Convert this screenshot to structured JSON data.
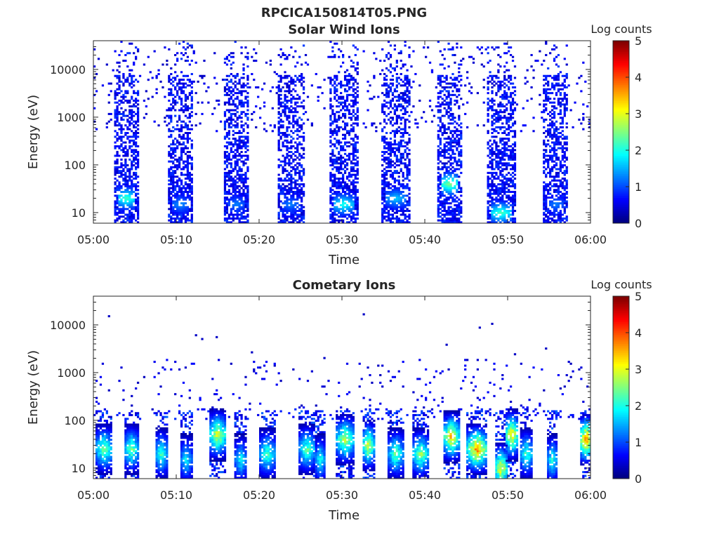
{
  "figure": {
    "title": "RPCICA150814T05.PNG"
  },
  "chart_data": [
    {
      "type": "heatmap",
      "title": "Solar Wind Ions",
      "xlabel": "Time",
      "ylabel": "Energy (eV)",
      "x_ticks": [
        "05:00",
        "05:10",
        "05:20",
        "05:30",
        "05:40",
        "05:50",
        "06:00"
      ],
      "y_ticks": [
        "10",
        "100",
        "1000",
        "10000"
      ],
      "y_scale": "log",
      "ylim_eV": [
        6,
        40000
      ],
      "colorbar": {
        "label": "Log counts",
        "min": 0,
        "max": 5,
        "ticks": [
          "0",
          "1",
          "2",
          "3",
          "4",
          "5"
        ],
        "colormap": "jet"
      },
      "bursts": [
        {
          "center_min": 4.0,
          "width_min": 3.2,
          "peak_log_counts": 2.2,
          "peak_energy_eV": 20,
          "low_energy_bright": true
        },
        {
          "center_min": 10.5,
          "width_min": 3.2,
          "peak_log_counts": 1.3,
          "peak_energy_eV": 15,
          "low_energy_bright": true
        },
        {
          "center_min": 17.3,
          "width_min": 3.0,
          "peak_log_counts": 1.2,
          "peak_energy_eV": 15,
          "low_energy_bright": true
        },
        {
          "center_min": 23.8,
          "width_min": 3.2,
          "peak_log_counts": 1.2,
          "peak_energy_eV": 15,
          "low_energy_bright": true
        },
        {
          "center_min": 30.2,
          "width_min": 3.5,
          "peak_log_counts": 2.0,
          "peak_energy_eV": 15,
          "low_energy_bright": true
        },
        {
          "center_min": 36.5,
          "width_min": 3.5,
          "peak_log_counts": 1.6,
          "peak_energy_eV": 20,
          "low_energy_bright": true
        },
        {
          "center_min": 43.0,
          "width_min": 3.2,
          "peak_log_counts": 2.5,
          "peak_energy_eV": 40,
          "low_energy_bright": true
        },
        {
          "center_min": 49.2,
          "width_min": 3.5,
          "peak_log_counts": 2.2,
          "peak_energy_eV": 10,
          "low_energy_bright": true
        },
        {
          "center_min": 55.8,
          "width_min": 3.0,
          "peak_log_counts": 1.2,
          "peak_energy_eV": 15,
          "low_energy_bright": true
        }
      ],
      "background_scatter_min_range": [
        0,
        60
      ],
      "background_scatter_energy_range_eV": [
        500,
        30000
      ]
    },
    {
      "type": "heatmap",
      "title": "Cometary Ions",
      "xlabel": "Time",
      "ylabel": "Energy (eV)",
      "x_ticks": [
        "05:00",
        "05:10",
        "05:20",
        "05:30",
        "05:40",
        "05:50",
        "06:00"
      ],
      "y_ticks": [
        "10",
        "100",
        "1000",
        "10000"
      ],
      "y_scale": "log",
      "ylim_eV": [
        6,
        40000
      ],
      "colorbar": {
        "label": "Log counts",
        "min": 0,
        "max": 5,
        "ticks": [
          "0",
          "1",
          "2",
          "3",
          "4",
          "5"
        ],
        "colormap": "jet"
      },
      "bursts": [
        {
          "center_min": 1.3,
          "width_min": 2.0,
          "peak_log_counts": 2.7,
          "peak_energy_eV": 25
        },
        {
          "center_min": 4.6,
          "width_min": 1.8,
          "peak_log_counts": 2.6,
          "peak_energy_eV": 25
        },
        {
          "center_min": 8.2,
          "width_min": 1.6,
          "peak_log_counts": 2.4,
          "peak_energy_eV": 20
        },
        {
          "center_min": 11.2,
          "width_min": 1.4,
          "peak_log_counts": 2.0,
          "peak_energy_eV": 15
        },
        {
          "center_min": 15.0,
          "width_min": 2.2,
          "peak_log_counts": 3.2,
          "peak_energy_eV": 50
        },
        {
          "center_min": 17.8,
          "width_min": 1.4,
          "peak_log_counts": 2.0,
          "peak_energy_eV": 15
        },
        {
          "center_min": 21.0,
          "width_min": 2.0,
          "peak_log_counts": 2.4,
          "peak_energy_eV": 20
        },
        {
          "center_min": 25.8,
          "width_min": 2.0,
          "peak_log_counts": 2.5,
          "peak_energy_eV": 25
        },
        {
          "center_min": 27.4,
          "width_min": 1.2,
          "peak_log_counts": 2.2,
          "peak_energy_eV": 15
        },
        {
          "center_min": 30.4,
          "width_min": 2.2,
          "peak_log_counts": 3.0,
          "peak_energy_eV": 40
        },
        {
          "center_min": 33.2,
          "width_min": 1.6,
          "peak_log_counts": 3.2,
          "peak_energy_eV": 30
        },
        {
          "center_min": 36.5,
          "width_min": 1.8,
          "peak_log_counts": 2.6,
          "peak_energy_eV": 20
        },
        {
          "center_min": 39.5,
          "width_min": 2.0,
          "peak_log_counts": 2.8,
          "peak_energy_eV": 20
        },
        {
          "center_min": 43.2,
          "width_min": 2.0,
          "peak_log_counts": 3.6,
          "peak_energy_eV": 45
        },
        {
          "center_min": 46.3,
          "width_min": 2.4,
          "peak_log_counts": 3.9,
          "peak_energy_eV": 25
        },
        {
          "center_min": 49.2,
          "width_min": 1.6,
          "peak_log_counts": 3.4,
          "peak_energy_eV": 10
        },
        {
          "center_min": 50.5,
          "width_min": 1.6,
          "peak_log_counts": 3.6,
          "peak_energy_eV": 50
        },
        {
          "center_min": 52.3,
          "width_min": 1.6,
          "peak_log_counts": 2.4,
          "peak_energy_eV": 20
        },
        {
          "center_min": 55.4,
          "width_min": 1.4,
          "peak_log_counts": 2.2,
          "peak_energy_eV": 15
        },
        {
          "center_min": 59.5,
          "width_min": 1.6,
          "peak_log_counts": 4.3,
          "peak_energy_eV": 40
        }
      ],
      "background_scatter_min_range": [
        0,
        60
      ],
      "background_scatter_energy_range_eV": [
        150,
        2000
      ]
    }
  ]
}
